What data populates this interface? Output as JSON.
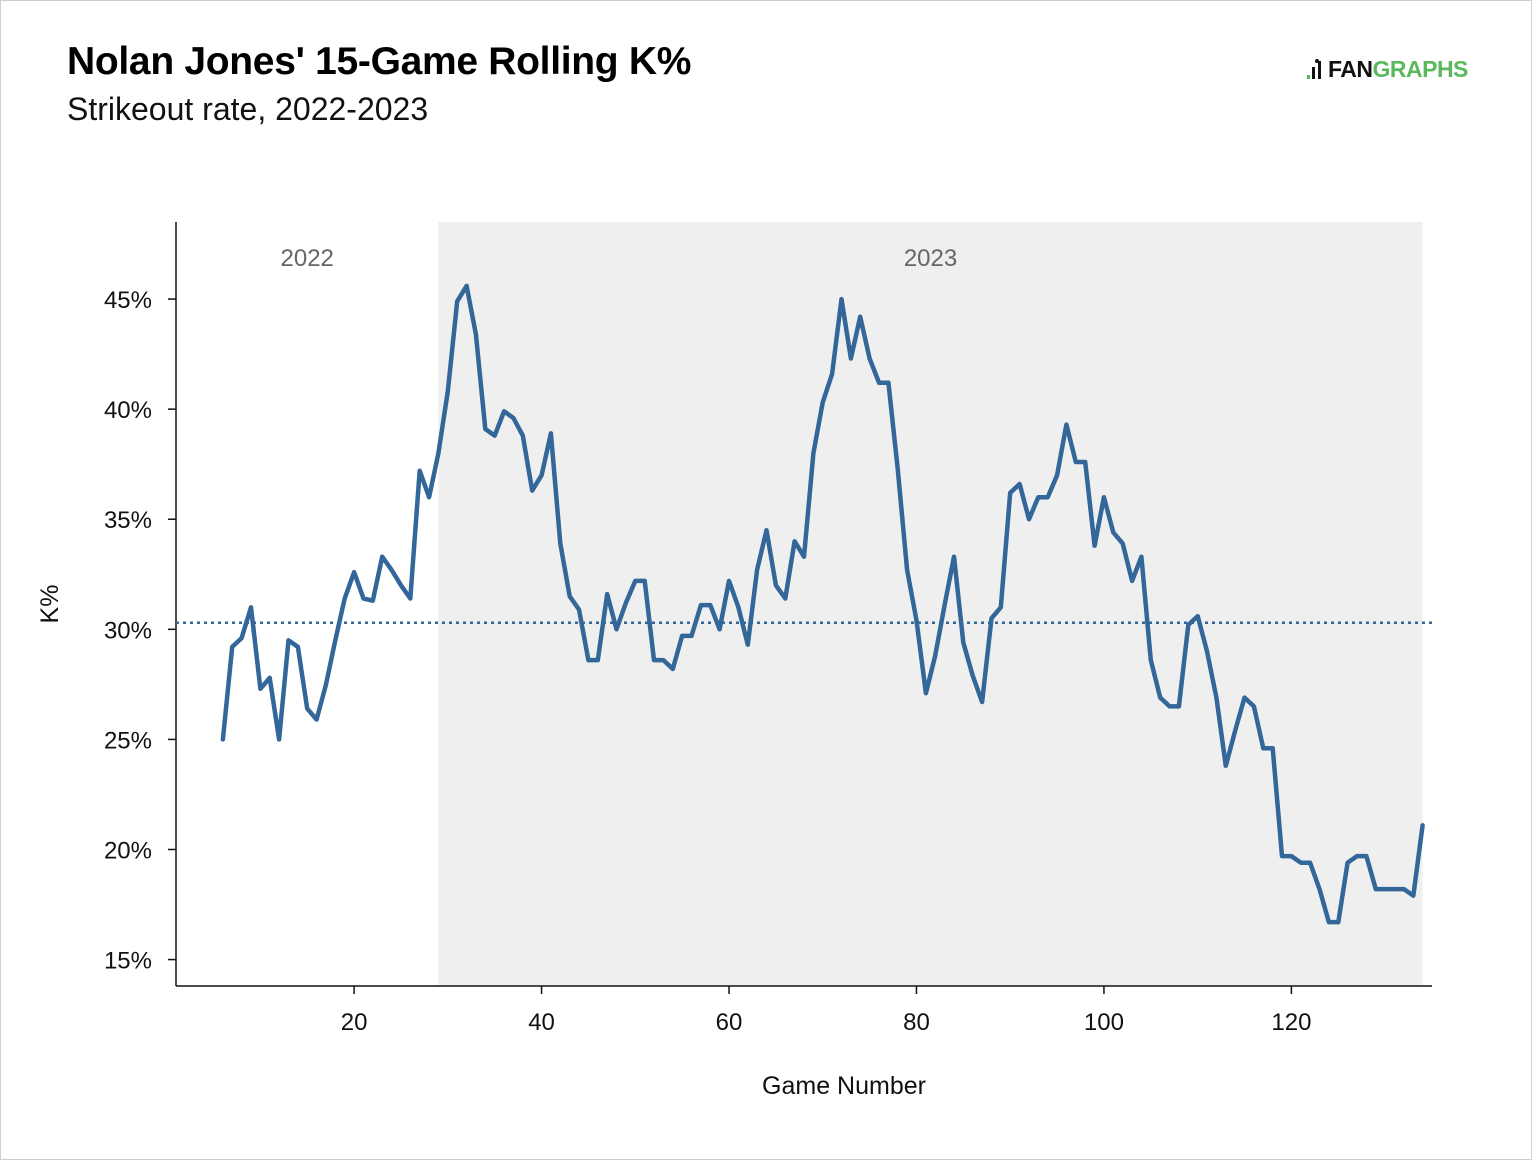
{
  "header": {
    "title": "Nolan Jones' 15-Game Rolling K%",
    "subtitle": "Strikeout rate, 2022-2023"
  },
  "logo": {
    "part1": "FAN",
    "part2": "GRAPHS"
  },
  "colors": {
    "line": "#336699",
    "shade": "#efefef",
    "brand_green": "#5cb85c"
  },
  "chart_data": {
    "type": "line",
    "title": "Nolan Jones' 15-Game Rolling K%",
    "subtitle": "Strikeout rate, 2022-2023",
    "xlabel": "Game Number",
    "ylabel": "K%",
    "xlim": [
      1,
      135
    ],
    "ylim": [
      13.8,
      48.5
    ],
    "x_ticks": [
      20,
      40,
      60,
      80,
      100,
      120
    ],
    "y_ticks": [
      {
        "value": 15,
        "label": "15%"
      },
      {
        "value": 20,
        "label": "20%"
      },
      {
        "value": 25,
        "label": "25%"
      },
      {
        "value": 30,
        "label": "30%"
      },
      {
        "value": 35,
        "label": "35%"
      },
      {
        "value": 40,
        "label": "40%"
      },
      {
        "value": 45,
        "label": "45%"
      }
    ],
    "reference_line": {
      "value": 30.3,
      "style": "dotted"
    },
    "regions": [
      {
        "label": "2022",
        "x_start": 1,
        "x_end": 29,
        "shaded": false
      },
      {
        "label": "2023",
        "x_start": 29,
        "x_end": 134,
        "shaded": true
      }
    ],
    "grid": false,
    "legend": "none",
    "series": [
      {
        "x": [
          6,
          7,
          8,
          9,
          10,
          11,
          12,
          13,
          14,
          15,
          16,
          17,
          18,
          19,
          20,
          21,
          22,
          23,
          24,
          25,
          26,
          27,
          28,
          29,
          30,
          31,
          32,
          33,
          34,
          35,
          36,
          37,
          38,
          39,
          40,
          41,
          42,
          43,
          44,
          45,
          46,
          47,
          48,
          49,
          50,
          51,
          52,
          53,
          54,
          55,
          56,
          57,
          58,
          59,
          60,
          61,
          62,
          63,
          64,
          65,
          66,
          67,
          68,
          69,
          70,
          71,
          72,
          73,
          74,
          75,
          76,
          77,
          78,
          79,
          80,
          81,
          82,
          83,
          84,
          85,
          86,
          87,
          88,
          89,
          90,
          91,
          92,
          93,
          94,
          95,
          96,
          97,
          98,
          99,
          100,
          101,
          102,
          103,
          104,
          105,
          106,
          107,
          108,
          109,
          110,
          111,
          112,
          113,
          114,
          115,
          116,
          117,
          118,
          119,
          120,
          121,
          122,
          123,
          124,
          125,
          126,
          127,
          128,
          129,
          130,
          131,
          132,
          133,
          134
        ],
        "y": [
          25.0,
          29.2,
          29.6,
          31.0,
          27.3,
          27.8,
          25.0,
          29.5,
          29.2,
          26.4,
          25.9,
          27.5,
          29.5,
          31.4,
          32.6,
          31.4,
          31.3,
          33.3,
          32.7,
          32.0,
          31.4,
          37.2,
          36.0,
          38.0,
          40.8,
          44.9,
          45.6,
          43.4,
          39.1,
          38.8,
          39.9,
          39.6,
          38.8,
          36.3,
          37.0,
          38.9,
          33.9,
          31.5,
          30.9,
          28.6,
          28.6,
          31.6,
          30.0,
          31.2,
          32.2,
          32.2,
          28.6,
          28.6,
          28.2,
          29.7,
          29.7,
          31.1,
          31.1,
          30.0,
          32.2,
          31.0,
          29.3,
          32.7,
          34.5,
          32.0,
          31.4,
          34.0,
          33.3,
          38.0,
          40.3,
          41.6,
          45.0,
          42.3,
          44.2,
          42.3,
          41.2,
          41.2,
          37.3,
          32.7,
          30.4,
          27.1,
          28.8,
          31.1,
          33.3,
          29.4,
          27.9,
          26.7,
          30.5,
          31.0,
          36.2,
          36.6,
          35.0,
          36.0,
          36.0,
          37.0,
          39.3,
          37.6,
          37.6,
          33.8,
          36.0,
          34.4,
          33.9,
          32.2,
          33.3,
          28.6,
          26.9,
          26.5,
          26.5,
          30.2,
          30.6,
          29.0,
          26.9,
          23.8,
          25.4,
          26.9,
          26.5,
          24.6,
          24.6,
          19.7,
          19.7,
          19.4,
          19.4,
          18.2,
          16.7,
          16.7,
          19.4,
          19.7,
          19.7,
          18.2,
          18.2,
          18.2,
          18.2,
          17.9,
          21.1
        ]
      }
    ]
  }
}
